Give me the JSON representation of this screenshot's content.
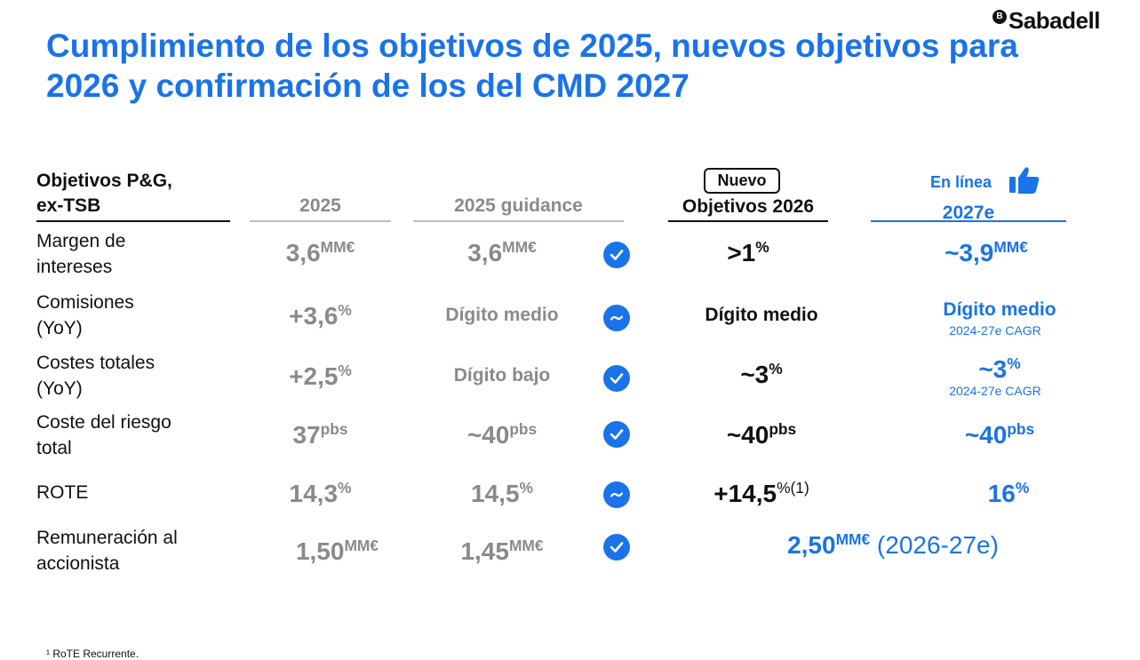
{
  "brand": {
    "logo_text": "Sabadell",
    "logo_mark": "B"
  },
  "title": "Cumplimiento de los objetivos de 2025, nuevos objetivos para 2026 y confirmación de los del CMD 2027",
  "headers": {
    "label_col": "Objetivos P&G,\nex-TSB",
    "col_2025": "2025",
    "col_guidance": "2025 guidance",
    "badge": "Nuevo",
    "col_2026": "Objetivos 2026",
    "col_2027_top": "En línea",
    "col_2027": "2027e"
  },
  "rows": [
    {
      "label": "Margen de\nintereses",
      "v2025": "3,6",
      "v2025_sup": "MM€",
      "guidance": "3,6",
      "guidance_sup": "MM€",
      "status_icon": "check-icon",
      "o2026": ">1",
      "o2026_sup": "%",
      "e2027": "~3,9",
      "e2027_sup": "MM€",
      "e2027_note": ""
    },
    {
      "label": "Comisiones\n(YoY)",
      "v2025": "+3,6",
      "v2025_sup": "%",
      "guidance": "Dígito medio",
      "guidance_sup": "",
      "status_icon": "tilde-icon",
      "o2026": "Dígito medio",
      "o2026_sup": "",
      "e2027": "Dígito medio",
      "e2027_sup": "",
      "e2027_note": "2024-27e CAGR"
    },
    {
      "label": "Costes totales\n(YoY)",
      "v2025": "+2,5",
      "v2025_sup": "%",
      "guidance": "Dígito bajo",
      "guidance_sup": "",
      "status_icon": "check-icon",
      "o2026": "~3",
      "o2026_sup": "%",
      "e2027": "~3",
      "e2027_sup": "%",
      "e2027_note": "2024-27e CAGR"
    },
    {
      "label": "Coste del riesgo\ntotal",
      "v2025": "37",
      "v2025_sup": "pbs",
      "guidance": "~40",
      "guidance_sup": "pbs",
      "status_icon": "check-icon",
      "o2026": "~40",
      "o2026_sup": "pbs",
      "e2027": "~40",
      "e2027_sup": "pbs",
      "e2027_note": ""
    },
    {
      "label": "ROTE",
      "v2025": "14,3",
      "v2025_sup": "%",
      "guidance": "14,5",
      "guidance_sup": "%",
      "status_icon": "tilde-icon",
      "o2026": "+14,5",
      "o2026_sup": "%(1)",
      "e2027": "16",
      "e2027_sup": "%",
      "e2027_note": ""
    },
    {
      "label": "Remuneración al\naccionista",
      "v2025": "1,50",
      "v2025_sup": "MM€",
      "guidance": "1,45",
      "guidance_sup": "MM€",
      "status_icon": "check-icon",
      "combined": "2,50",
      "combined_sup": "MM€",
      "combined_suffix": " (2026-27e)"
    }
  ],
  "footnote": "¹ RoTE Recurrente.",
  "colors": {
    "accent": "#1a73e8",
    "gray": "#8a8a8a",
    "text": "#111111"
  }
}
